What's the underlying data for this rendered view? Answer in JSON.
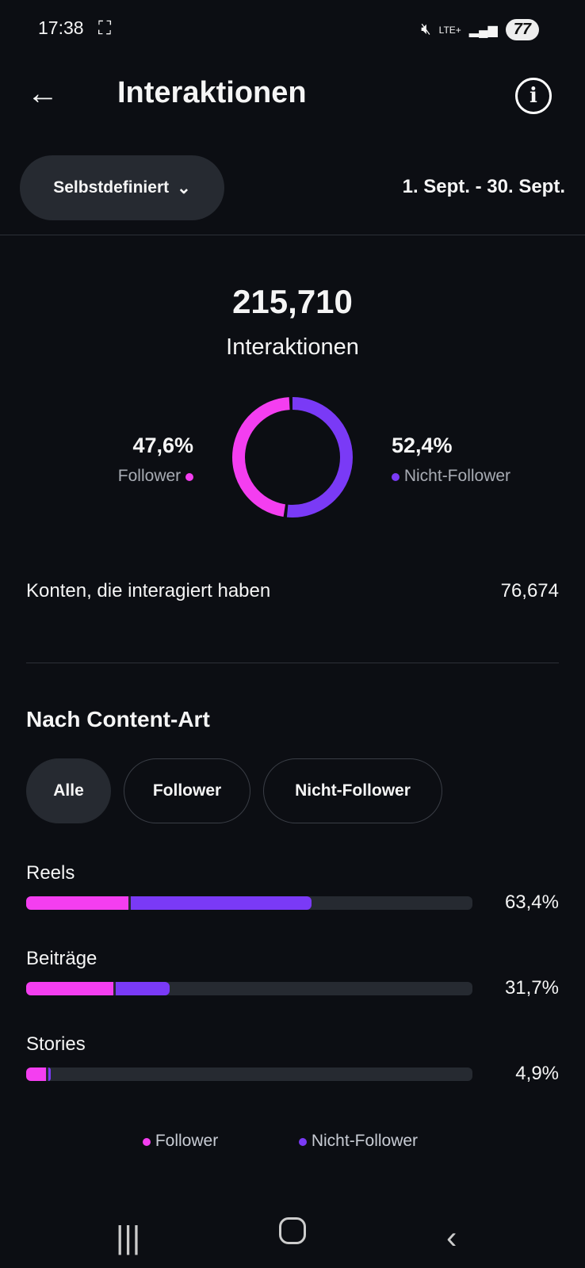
{
  "status_bar": {
    "time": "17:38",
    "network": "LTE+",
    "battery": "77"
  },
  "header": {
    "title": "Interaktionen"
  },
  "filter": {
    "dropdown_label": "Selbstdefiniert",
    "date_range": "1. Sept. - 30. Sept."
  },
  "summary": {
    "total": "215,710",
    "total_label": "Interaktionen",
    "follower_pct": "47,6%",
    "follower_label": "Follower",
    "nonfollower_pct": "52,4%",
    "nonfollower_label": "Nicht-Follower",
    "accounts_label": "Konten, die interagiert haben",
    "accounts_value": "76,674"
  },
  "content": {
    "heading": "Nach Content-Art",
    "chips": [
      "Alle",
      "Follower",
      "Nicht-Follower"
    ],
    "active_chip": "Alle"
  },
  "legend": {
    "follower": "Follower",
    "nonfollower": "Nicht-Follower"
  },
  "colors": {
    "follower": "#f43ef0",
    "nonfollower": "#7a3af6",
    "track": "#262a31"
  },
  "chart_data": [
    {
      "type": "pie",
      "subtype": "donut",
      "categories": [
        "Follower",
        "Nicht-Follower"
      ],
      "values": [
        47.6,
        52.4
      ]
    },
    {
      "type": "bar",
      "orientation": "horizontal",
      "stacked": true,
      "categories": [
        "Reels",
        "Beiträge",
        "Stories"
      ],
      "totals": [
        "63,4%",
        "31,7%",
        "4,9%"
      ],
      "series": [
        {
          "name": "Follower",
          "values": [
            23.0,
            19.5,
            4.4
          ]
        },
        {
          "name": "Nicht-Follower",
          "values": [
            40.4,
            12.2,
            0.5
          ]
        }
      ],
      "xlim": [
        0,
        100
      ]
    }
  ]
}
